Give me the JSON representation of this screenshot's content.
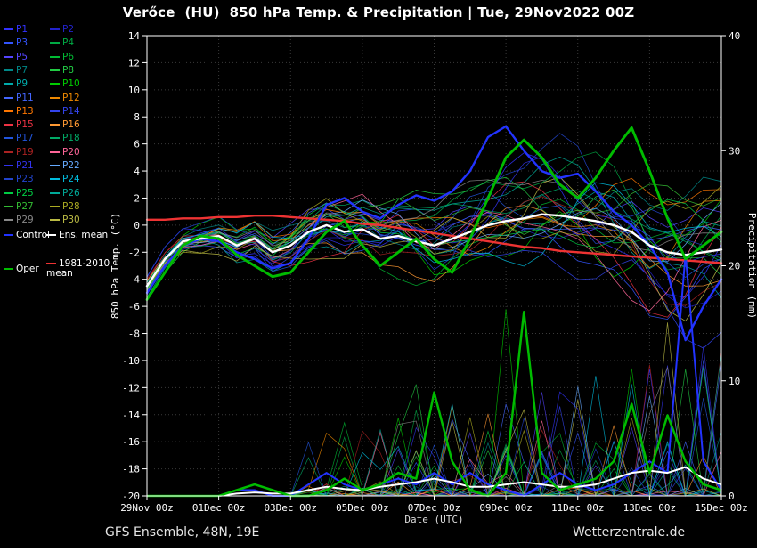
{
  "footer": {
    "left": "GFS Ensemble, 48N, 19E",
    "right": "Wetterzentrale.de"
  },
  "legend": {
    "specials": [
      {
        "label": "Control",
        "color": "#2233ff",
        "text": "#ffffff"
      },
      {
        "label": "Ens. mean",
        "color": "#ffffff",
        "text": "#ffffff"
      },
      {
        "label": "Oper",
        "color": "#00bb00",
        "text": "#ffffff"
      },
      {
        "label": "1981-2010 mean",
        "color": "#ee3333",
        "text": "#ffffff"
      }
    ]
  },
  "chart_data": {
    "type": "line",
    "title": "Verőce  (HU)  850 hPa Temp. & Precipitation | Tue, 29Nov2022 00Z",
    "xlabel": "Date (UTC)",
    "ylabel_left": "850 hPa Temp. (°C)",
    "ylabel_right": "Precipitation (mm)",
    "x_points": 33,
    "x_step_hours": 12,
    "x_tick_indices": [
      0,
      4,
      8,
      12,
      16,
      20,
      24,
      28,
      32
    ],
    "x_tick_labels": [
      "29Nov 00z",
      "01Dec 00z",
      "03Dec 00z",
      "05Dec 00z",
      "07Dec 00z",
      "09Dec 00z",
      "11Dec 00z",
      "13Dec 00z",
      "15Dec 00z"
    ],
    "ylim_left": [
      -20,
      14
    ],
    "y_tick_step_left": 2,
    "ylim_right": [
      0,
      40
    ],
    "y_ticks_right": [
      0,
      10,
      20,
      30,
      40
    ],
    "grid": "dotted",
    "series": [
      {
        "name": "1981-2010 mean",
        "role": "clim_mean",
        "color": "#ee3333",
        "width": 2.4,
        "temp": [
          0.4,
          0.4,
          0.5,
          0.5,
          0.6,
          0.6,
          0.7,
          0.7,
          0.6,
          0.5,
          0.4,
          0.3,
          0.1,
          0.0,
          -0.2,
          -0.4,
          -0.6,
          -0.8,
          -1.0,
          -1.2,
          -1.4,
          -1.6,
          -1.7,
          -1.9,
          -2.0,
          -2.1,
          -2.2,
          -2.3,
          -2.4,
          -2.5,
          -2.6,
          -2.7,
          -2.8
        ]
      },
      {
        "name": "Control",
        "role": "control",
        "color": "#2233ff",
        "width": 2.4,
        "temp": [
          -5.0,
          -3.0,
          -1.5,
          -1.0,
          -1.2,
          -2.0,
          -2.5,
          -3.2,
          -2.8,
          -1.0,
          1.5,
          2.0,
          1.0,
          0.5,
          1.5,
          2.2,
          1.8,
          2.5,
          4.0,
          6.5,
          7.3,
          5.5,
          4.0,
          3.5,
          3.8,
          2.5,
          1.0,
          0.0,
          -1.5,
          -3.5,
          -8.5,
          -6.0,
          -4.0
        ],
        "precip": [
          0,
          0,
          0,
          0,
          0,
          0.5,
          0.5,
          0,
          0,
          1,
          2,
          1,
          0.5,
          1,
          1.5,
          1,
          2,
          1,
          2,
          1,
          0.5,
          0,
          1,
          2,
          1,
          0.5,
          1,
          2,
          3,
          2,
          21,
          3,
          0.5
        ]
      },
      {
        "name": "Ens. mean",
        "role": "ens_mean",
        "color": "#ffffff",
        "width": 2.4,
        "temp": [
          -4.5,
          -2.5,
          -1.2,
          -1.0,
          -0.8,
          -1.5,
          -1.0,
          -2.0,
          -1.5,
          -0.5,
          0.0,
          -0.5,
          -0.3,
          -1.0,
          -0.8,
          -1.2,
          -1.5,
          -1.0,
          -0.5,
          0.0,
          0.3,
          0.5,
          0.8,
          0.7,
          0.5,
          0.3,
          0.0,
          -0.5,
          -1.5,
          -2.0,
          -2.2,
          -2.0,
          -1.8
        ],
        "precip": [
          0,
          0,
          0,
          0,
          0,
          0.2,
          0.3,
          0.2,
          0.2,
          0.5,
          0.8,
          0.6,
          0.5,
          0.8,
          1.0,
          1.2,
          1.5,
          1.2,
          0.8,
          0.8,
          1.0,
          1.2,
          1.0,
          0.8,
          0.8,
          1.0,
          1.5,
          2.0,
          2.2,
          2.0,
          2.5,
          1.5,
          1.0
        ]
      },
      {
        "name": "Oper",
        "role": "oper",
        "color": "#00bb00",
        "width": 2.9,
        "temp": [
          -5.5,
          -3.5,
          -1.5,
          -0.8,
          -1.0,
          -2.2,
          -3.0,
          -3.8,
          -3.5,
          -2.0,
          -0.5,
          0.3,
          -1.5,
          -3.0,
          -2.0,
          -1.0,
          -2.5,
          -3.5,
          -1.0,
          2.0,
          5.0,
          6.3,
          5.0,
          3.0,
          2.0,
          3.5,
          5.5,
          7.2,
          4.0,
          0.5,
          -2.5,
          -1.5,
          -0.5
        ],
        "precip": [
          0,
          0,
          0,
          0,
          0,
          0.5,
          1,
          0.5,
          0,
          0,
          0.5,
          1.5,
          0.5,
          1,
          2,
          1.5,
          9,
          3,
          0.5,
          0,
          2,
          16,
          2,
          0.5,
          1,
          1.5,
          3,
          8,
          2,
          7,
          3,
          1,
          0.5
        ]
      }
    ],
    "ensemble": {
      "labels": [
        "P1",
        "P2",
        "P3",
        "P4",
        "P5",
        "P6",
        "P7",
        "P8",
        "P9",
        "P10",
        "P11",
        "P12",
        "P13",
        "P14",
        "P15",
        "P16",
        "P17",
        "P18",
        "P19",
        "P20",
        "P21",
        "P22",
        "P23",
        "P24",
        "P25",
        "P26",
        "P27",
        "P28",
        "P29",
        "P30"
      ],
      "colors": [
        "#3333ff",
        "#2222cc",
        "#3355ff",
        "#00aa44",
        "#5544ff",
        "#00bb33",
        "#008888",
        "#22cc44",
        "#00aaaa",
        "#00cc00",
        "#4466ff",
        "#ee8800",
        "#ff7700",
        "#3344ee",
        "#ee3344",
        "#ff9933",
        "#2255dd",
        "#00aa66",
        "#aa2222",
        "#ff6699",
        "#3333ee",
        "#66aaff",
        "#2244cc",
        "#00bbdd",
        "#00cc44",
        "#00aa99",
        "#33bb33",
        "#aaaa22",
        "#888888",
        "#bbbb44"
      ],
      "spread_start": 0.8,
      "spread_end": 5.4
    }
  }
}
